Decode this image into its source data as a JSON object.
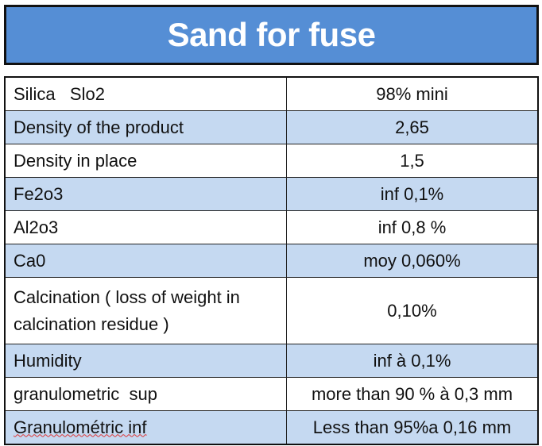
{
  "title": "Sand for fuse",
  "rows": [
    {
      "label": "Silica   Slo2",
      "value": "98% mini"
    },
    {
      "label": "Density of the product",
      "value": "2,65"
    },
    {
      "label": "Density in place",
      "value": "1,5"
    },
    {
      "label": "Fe2o3",
      "value": "inf 0,1%"
    },
    {
      "label": "Al2o3",
      "value": "inf 0,8 %"
    },
    {
      "label": "Ca0",
      "value": "moy 0,060%"
    },
    {
      "label": "Calcination ( loss of weight in calcination residue )",
      "value": "0,10%"
    },
    {
      "label": "Humidity",
      "value": "inf à 0,1%"
    },
    {
      "label": "granulometric  sup",
      "value": "more than 90 % à 0,3 mm"
    },
    {
      "label": "Granulométric inf",
      "value": "Less than 95%a 0,16 mm"
    }
  ],
  "colors": {
    "title_bg": "#558ed5",
    "alt_row": "#c5d9f1"
  }
}
